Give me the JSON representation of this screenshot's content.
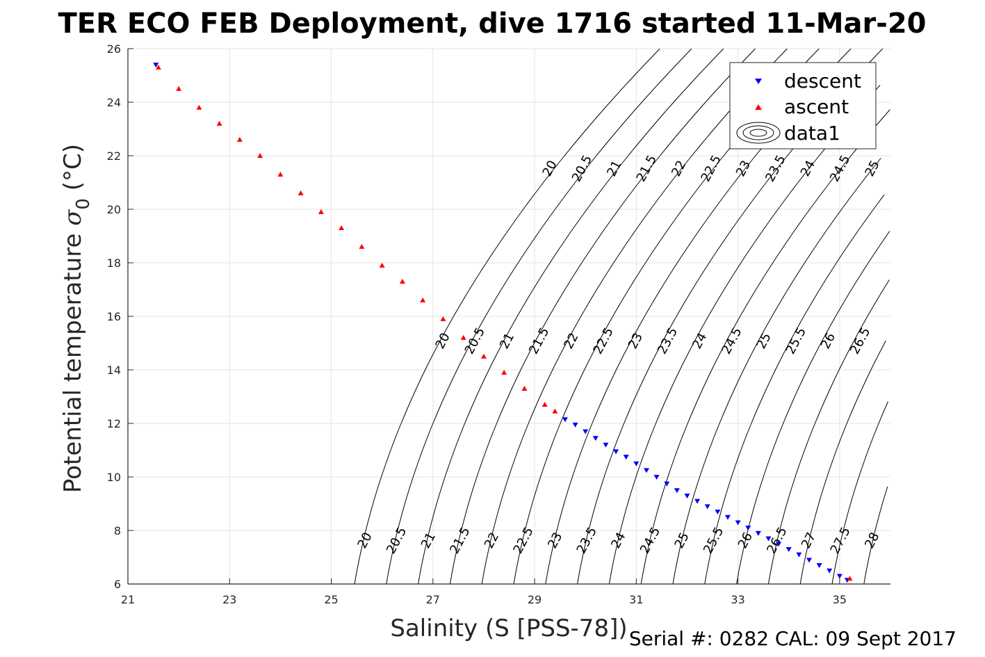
{
  "chart_data": {
    "type": "scatter",
    "title": "TER ECO FEB Deployment, dive 1716 started 11-Mar-20",
    "xlabel": "Salinity (S [PSS-78])",
    "ylabel": "Potential temperature σ0 (°C)",
    "ylabel_main": "Potential temperature ",
    "ylabel_sym": "σ",
    "ylabel_sub": "0",
    "ylabel_unit": " (°C)",
    "xlim": [
      21,
      36
    ],
    "ylim": [
      6,
      26
    ],
    "x_ticks": [
      21,
      23,
      25,
      27,
      29,
      31,
      33,
      35
    ],
    "y_ticks": [
      6,
      8,
      10,
      12,
      14,
      16,
      18,
      20,
      22,
      24,
      26
    ],
    "grid": true,
    "legend_position": "top-right",
    "legend": [
      "descent",
      "ascent",
      "data1"
    ],
    "footer": "Serial #: 0282  CAL: 09 Sept 2017",
    "contour_levels": [
      20,
      20.5,
      21,
      21.5,
      22,
      22.5,
      23,
      23.5,
      24,
      24.5,
      25,
      25.5,
      26,
      26.5,
      27,
      27.5,
      28
    ],
    "contour_labels_top": [
      "20",
      "20.5",
      "21",
      "21.5",
      "22",
      "22.5",
      "23",
      "23.5",
      "24",
      "24.5",
      "25"
    ],
    "contour_labels_mid": [
      "20",
      "20.5",
      "21",
      "21.5",
      "22",
      "22.5",
      "23",
      "23.5",
      "24",
      "24.5",
      "25",
      "25.5",
      "26",
      "26.5"
    ],
    "contour_labels_bottom": [
      "20",
      "20.5",
      "21",
      "21.5",
      "22",
      "22.5",
      "23",
      "23.5",
      "24",
      "24.5",
      "25",
      "25.5",
      "26",
      "26.5",
      "27",
      "27.5",
      "28"
    ],
    "series": [
      {
        "name": "descent",
        "color": "#0000ff",
        "marker": "triangle-down",
        "points": [
          [
            21.55,
            25.4
          ],
          [
            29.6,
            12.15
          ],
          [
            29.8,
            11.95
          ],
          [
            30.0,
            11.7
          ],
          [
            30.2,
            11.45
          ],
          [
            30.4,
            11.2
          ],
          [
            30.6,
            10.95
          ],
          [
            30.8,
            10.75
          ],
          [
            31.0,
            10.5
          ],
          [
            31.2,
            10.25
          ],
          [
            31.4,
            10.0
          ],
          [
            31.6,
            9.75
          ],
          [
            31.8,
            9.5
          ],
          [
            32.0,
            9.3
          ],
          [
            32.2,
            9.1
          ],
          [
            32.4,
            8.9
          ],
          [
            32.6,
            8.7
          ],
          [
            32.8,
            8.5
          ],
          [
            33.0,
            8.3
          ],
          [
            33.2,
            8.1
          ],
          [
            33.4,
            7.9
          ],
          [
            33.6,
            7.7
          ],
          [
            33.8,
            7.5
          ],
          [
            34.0,
            7.3
          ],
          [
            34.2,
            7.1
          ],
          [
            34.4,
            6.9
          ],
          [
            34.6,
            6.7
          ],
          [
            34.8,
            6.5
          ],
          [
            35.0,
            6.3
          ],
          [
            35.15,
            6.15
          ]
        ]
      },
      {
        "name": "ascent",
        "color": "#ff0000",
        "marker": "triangle-up",
        "points": [
          [
            21.6,
            25.3
          ],
          [
            22.0,
            24.5
          ],
          [
            22.4,
            23.8
          ],
          [
            22.8,
            23.2
          ],
          [
            23.2,
            22.6
          ],
          [
            23.6,
            22.0
          ],
          [
            24.0,
            21.3
          ],
          [
            24.4,
            20.6
          ],
          [
            24.8,
            19.9
          ],
          [
            25.2,
            19.3
          ],
          [
            25.6,
            18.6
          ],
          [
            26.0,
            17.9
          ],
          [
            26.4,
            17.3
          ],
          [
            26.8,
            16.6
          ],
          [
            27.2,
            15.9
          ],
          [
            27.6,
            15.2
          ],
          [
            28.0,
            14.5
          ],
          [
            28.4,
            13.9
          ],
          [
            28.8,
            13.3
          ],
          [
            29.2,
            12.7
          ],
          [
            29.4,
            12.45
          ],
          [
            35.2,
            6.2
          ]
        ]
      }
    ]
  }
}
